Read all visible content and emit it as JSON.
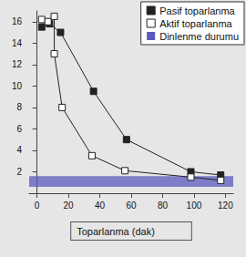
{
  "chart_data": {
    "type": "line",
    "x_label": "Toparlanma (dak)",
    "xlim": [
      -5,
      125
    ],
    "xticks": [
      0,
      20,
      40,
      60,
      80,
      100,
      120
    ],
    "ylim": [
      0,
      17
    ],
    "yticks": [
      2,
      4,
      6,
      8,
      10,
      12,
      14,
      16
    ],
    "grid": false,
    "legend": "upper right",
    "series": [
      {
        "name": "Pasif toparlanma",
        "color": "#222222",
        "marker": "square",
        "x": [
          3,
          8,
          15,
          36,
          57,
          98,
          117
        ],
        "values": [
          15.5,
          15.8,
          15.0,
          9.5,
          5.0,
          2.0,
          1.7
        ]
      },
      {
        "name": "Aktif toparlanma",
        "color": "#222222",
        "marker": "hollow_square",
        "x": [
          3,
          7,
          11,
          11,
          16,
          35,
          56,
          98,
          117
        ],
        "values": [
          16.2,
          16.0,
          16.5,
          13.0,
          8.0,
          3.5,
          2.1,
          1.5,
          1.2
        ]
      },
      {
        "name": "Dinlenme durumu",
        "type": "band",
        "color": "#5a5abf",
        "range": [
          0.6,
          1.6
        ]
      }
    ]
  }
}
